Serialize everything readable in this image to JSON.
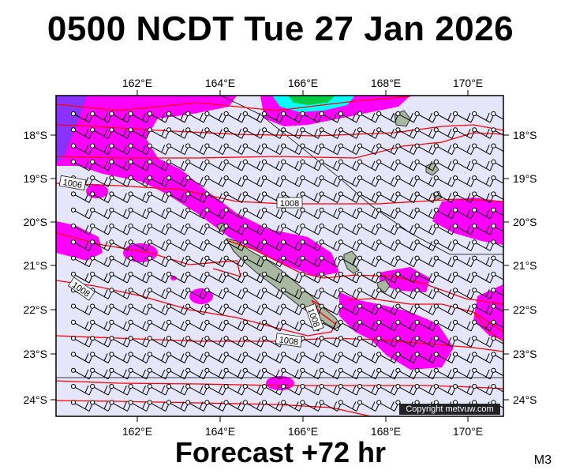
{
  "title": "0500 NCDT Tue 27 Jan 2026",
  "footer": "Forecast +72 hr",
  "model_tag": "M3",
  "copyright": "Copyright metvuw.com",
  "map": {
    "lon_labels": [
      "162°E",
      "164°E",
      "166°E",
      "168°E",
      "170°E"
    ],
    "lat_labels": [
      "18°S",
      "19°S",
      "20°S",
      "21°S",
      "22°S",
      "23°S",
      "24°S"
    ],
    "isobar_labels": [
      "1006",
      "1008",
      "1008",
      "1008",
      "1008"
    ]
  },
  "colors": {
    "background": "#e6e6fa",
    "rain": "#ff00ff",
    "isobar": "#ff0000",
    "land": "#a9b8a0"
  }
}
